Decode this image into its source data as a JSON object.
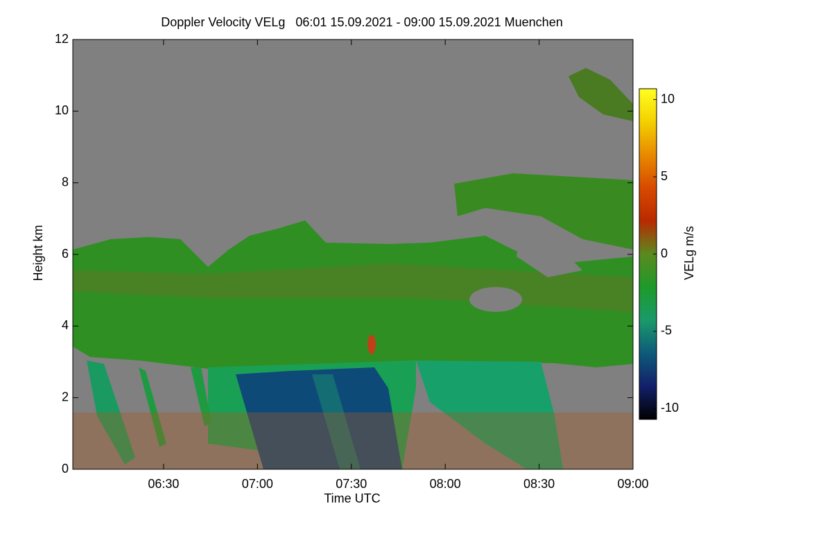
{
  "chart_data": {
    "type": "heatmap",
    "title": "Doppler Velocity VELg   06:01 15.09.2021 - 09:00 15.09.2021 Muenchen",
    "x_label": "Time UTC",
    "y_label": "Height km",
    "xlim": [
      361,
      540
    ],
    "xticks": [
      {
        "value": 390,
        "label": "06:30"
      },
      {
        "value": 420,
        "label": "07:00"
      },
      {
        "value": 450,
        "label": "07:30"
      },
      {
        "value": 480,
        "label": "08:00"
      },
      {
        "value": 510,
        "label": "08:30"
      },
      {
        "value": 540,
        "label": "09:00"
      }
    ],
    "ylim": [
      0,
      12
    ],
    "yticks": [
      0,
      2,
      4,
      6,
      8,
      10,
      12
    ],
    "colorbar": {
      "label": "VELg m/s",
      "lim": [
        -10.7,
        10.7
      ],
      "ticks": [
        -10,
        -5,
        0,
        5,
        10
      ],
      "colormap": [
        "#000000",
        "#12206a",
        "#0e5a7a",
        "#1a9a6a",
        "#1e9a2a",
        "#5a8a20",
        "#b82a00",
        "#d84a00",
        "#e88a00",
        "#f4d000",
        "#ffff20"
      ]
    },
    "background": "#808080"
  }
}
